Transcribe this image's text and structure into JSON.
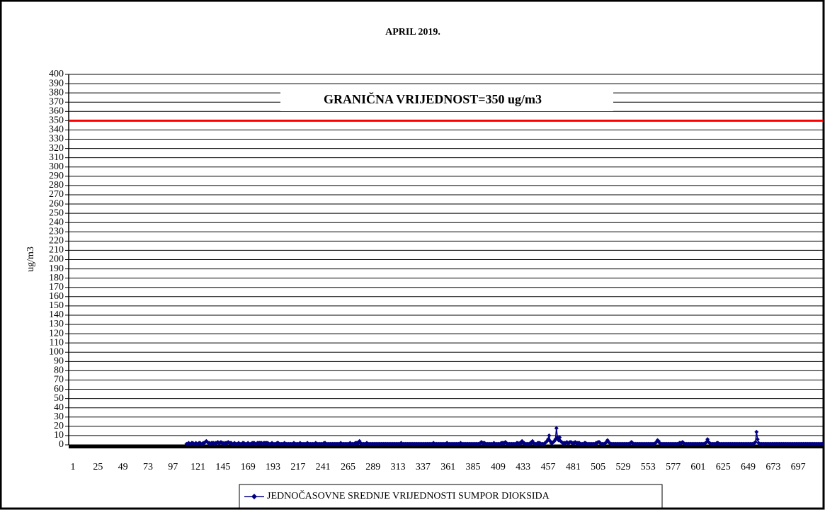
{
  "chart_data": {
    "type": "line",
    "title": "APRIL 2019.",
    "y_label": "ug/m3",
    "annotation": {
      "text": "GRANIČNA VRIJEDNOST=350 ug/m3",
      "color": "#ff0000"
    },
    "limit_line": {
      "value": 350,
      "color": "#ff0000"
    },
    "grid": true,
    "legend": "bottom",
    "xlim": [
      1,
      720
    ],
    "xticks": [
      1,
      25,
      49,
      73,
      97,
      121,
      145,
      169,
      193,
      217,
      241,
      265,
      289,
      313,
      337,
      361,
      385,
      409,
      433,
      457,
      481,
      505,
      529,
      553,
      577,
      601,
      625,
      649,
      673,
      697
    ],
    "ylim": [
      0,
      400
    ],
    "yticks": [
      0,
      10,
      20,
      30,
      40,
      50,
      60,
      70,
      80,
      90,
      100,
      110,
      120,
      130,
      140,
      150,
      160,
      170,
      180,
      190,
      200,
      210,
      220,
      230,
      240,
      250,
      260,
      270,
      280,
      290,
      300,
      310,
      320,
      330,
      340,
      350,
      360,
      370,
      380,
      390,
      400
    ],
    "x": [
      1,
      2,
      3,
      4,
      5,
      6,
      7,
      8,
      9,
      10,
      11,
      12,
      13,
      14,
      15,
      16,
      17,
      18,
      19,
      20,
      21,
      22,
      23,
      24,
      25,
      26,
      27,
      28,
      29,
      30,
      31,
      32,
      33,
      34,
      35,
      36,
      37,
      38,
      39,
      40,
      41,
      42,
      43,
      44,
      45,
      46,
      47,
      48,
      49,
      50,
      51,
      52,
      53,
      54,
      55,
      56,
      57,
      58,
      59,
      60,
      61,
      62,
      63,
      64,
      65,
      66,
      67,
      68,
      69,
      70,
      71,
      72,
      73,
      74,
      75,
      76,
      77,
      78,
      79,
      80,
      81,
      82,
      83,
      84,
      85,
      86,
      87,
      88,
      89,
      90,
      91,
      92,
      93,
      94,
      95,
      96,
      97,
      98,
      99,
      100,
      101,
      102,
      103,
      104,
      105,
      106,
      107,
      108,
      109,
      110,
      111,
      112,
      113,
      114,
      115,
      116,
      117,
      118,
      119,
      120,
      121,
      122,
      123,
      124,
      125,
      126,
      127,
      128,
      129,
      130,
      131,
      132,
      133,
      134,
      135,
      136,
      137,
      138,
      139,
      140,
      141,
      142,
      143,
      144,
      145,
      146,
      147,
      148,
      149,
      150,
      151,
      152,
      153,
      154,
      155,
      156,
      157,
      158,
      159,
      160,
      161,
      162,
      163,
      164,
      165,
      166,
      167,
      168,
      169,
      170,
      171,
      172,
      173,
      174,
      175,
      176,
      177,
      178,
      179,
      180,
      181,
      182,
      183,
      184,
      185,
      186,
      187,
      188,
      189,
      190,
      191,
      192,
      193,
      194,
      195,
      196,
      197,
      198,
      199,
      200,
      201,
      202,
      203,
      204,
      205,
      206,
      207,
      208,
      209,
      210,
      211,
      212,
      213,
      214,
      215,
      216,
      217,
      218,
      219,
      220,
      221,
      222,
      223,
      224,
      225,
      226,
      227,
      228,
      229,
      230,
      231,
      232,
      233,
      234,
      235,
      236,
      237,
      238,
      239,
      240,
      241,
      242,
      243,
      244,
      245,
      246,
      247,
      248,
      249,
      250,
      251,
      252,
      253,
      254,
      255,
      256,
      257,
      258,
      259,
      260,
      261,
      262,
      263,
      264,
      265,
      266,
      267,
      268,
      269,
      270,
      271,
      272,
      273,
      274,
      275,
      276,
      277,
      278,
      279,
      280,
      281,
      282,
      283,
      284,
      285,
      286,
      287,
      288,
      289,
      290,
      291,
      292,
      293,
      294,
      295,
      296,
      297,
      298,
      299,
      300,
      301,
      302,
      303,
      304,
      305,
      306,
      307,
      308,
      309,
      310,
      311,
      312,
      313,
      314,
      315,
      316,
      317,
      318,
      319,
      320,
      321,
      322,
      323,
      324,
      325,
      326,
      327,
      328,
      329,
      330,
      331,
      332,
      333,
      334,
      335,
      336,
      337,
      338,
      339,
      340,
      341,
      342,
      343,
      344,
      345,
      346,
      347,
      348,
      349,
      350,
      351,
      352,
      353,
      354,
      355,
      356,
      357,
      358,
      359,
      360,
      361,
      362,
      363,
      364,
      365,
      366,
      367,
      368,
      369,
      370,
      371,
      372,
      373,
      374,
      375,
      376,
      377,
      378,
      379,
      380,
      381,
      382,
      383,
      384,
      385,
      386,
      387,
      388,
      389,
      390,
      391,
      392,
      393,
      394,
      395,
      396,
      397,
      398,
      399,
      400,
      401,
      402,
      403,
      404,
      405,
      406,
      407,
      408,
      409,
      410,
      411,
      412,
      413,
      414,
      415,
      416,
      417,
      418,
      419,
      420,
      421,
      422,
      423,
      424,
      425,
      426,
      427,
      428,
      429,
      430,
      431,
      432,
      433,
      434,
      435,
      436,
      437,
      438,
      439,
      440,
      441,
      442,
      443,
      444,
      445,
      446,
      447,
      448,
      449,
      450,
      451,
      452,
      453,
      454,
      455,
      456,
      457,
      458,
      459,
      460,
      461,
      462,
      463,
      464,
      465,
      466,
      467,
      468,
      469,
      470,
      471,
      472,
      473,
      474,
      475,
      476,
      477,
      478,
      479,
      480,
      481,
      482,
      483,
      484,
      485,
      486,
      487,
      488,
      489,
      490,
      491,
      492,
      493,
      494,
      495,
      496,
      497,
      498,
      499,
      500,
      501,
      502,
      503,
      504,
      505,
      506,
      507,
      508,
      509,
      510,
      511,
      512,
      513,
      514,
      515,
      516,
      517,
      518,
      519,
      520,
      521,
      522,
      523,
      524,
      525,
      526,
      527,
      528,
      529,
      530,
      531,
      532,
      533,
      534,
      535,
      536,
      537,
      538,
      539,
      540,
      541,
      542,
      543,
      544,
      545,
      546,
      547,
      548,
      549,
      550,
      551,
      552,
      553,
      554,
      555,
      556,
      557,
      558,
      559,
      560,
      561,
      562,
      563,
      564,
      565,
      566,
      567,
      568,
      569,
      570,
      571,
      572,
      573,
      574,
      575,
      576,
      577,
      578,
      579,
      580,
      581,
      582,
      583,
      584,
      585,
      586,
      587,
      588,
      589,
      590,
      591,
      592,
      593,
      594,
      595,
      596,
      597,
      598,
      599,
      600,
      601,
      602,
      603,
      604,
      605,
      606,
      607,
      608,
      609,
      610,
      611,
      612,
      613,
      614,
      615,
      616,
      617,
      618,
      619,
      620,
      621,
      622,
      623,
      624,
      625,
      626,
      627,
      628,
      629,
      630,
      631,
      632,
      633,
      634,
      635,
      636,
      637,
      638,
      639,
      640,
      641,
      642,
      643,
      644,
      645,
      646,
      647,
      648,
      649,
      650,
      651,
      652,
      653,
      654,
      655,
      656,
      657,
      658,
      659,
      660,
      661,
      662,
      663,
      664,
      665,
      666,
      667,
      668,
      669,
      670,
      671,
      672,
      673,
      674,
      675,
      676,
      677,
      678,
      679,
      680,
      681,
      682,
      683,
      684,
      685,
      686,
      687,
      688,
      689,
      690,
      691,
      692,
      693,
      694,
      695,
      696,
      697,
      698,
      699,
      700,
      701,
      702,
      703,
      704,
      705,
      706,
      707,
      708,
      709,
      710,
      711,
      712,
      713,
      714,
      715,
      716,
      717,
      718,
      719,
      720
    ],
    "series": [
      {
        "name": "JEDNOČASOVNE SREDNJE VRIJEDNOSTI SUMPOR DIOKSIDA",
        "color": "#000080",
        "values": [
          null,
          null,
          null,
          null,
          null,
          null,
          null,
          null,
          null,
          null,
          null,
          null,
          null,
          null,
          null,
          null,
          null,
          null,
          null,
          null,
          null,
          null,
          null,
          null,
          null,
          null,
          null,
          null,
          null,
          null,
          null,
          null,
          null,
          null,
          null,
          null,
          null,
          null,
          null,
          null,
          null,
          null,
          null,
          null,
          null,
          null,
          null,
          null,
          null,
          null,
          null,
          null,
          null,
          null,
          null,
          null,
          null,
          null,
          null,
          null,
          null,
          null,
          null,
          null,
          null,
          null,
          null,
          null,
          null,
          null,
          null,
          null,
          null,
          null,
          null,
          null,
          null,
          null,
          null,
          null,
          null,
          null,
          null,
          null,
          null,
          null,
          null,
          null,
          null,
          null,
          null,
          null,
          null,
          null,
          null,
          null,
          null,
          null,
          null,
          null,
          null,
          null,
          null,
          null,
          null,
          null,
          null,
          null,
          null,
          1,
          1,
          2,
          1,
          1,
          2,
          2,
          1,
          1,
          2,
          1,
          1,
          2,
          2,
          1,
          1,
          2,
          2,
          3,
          4,
          3,
          2,
          2,
          1,
          2,
          2,
          2,
          1,
          2,
          2,
          3,
          2,
          2,
          3,
          2,
          2,
          1,
          2,
          2,
          2,
          3,
          2,
          2,
          2,
          1,
          1,
          2,
          1,
          1,
          1,
          2,
          1,
          1,
          1,
          2,
          2,
          1,
          1,
          1,
          2,
          1,
          1,
          1,
          2,
          2,
          2,
          1,
          1,
          2,
          2,
          2,
          2,
          2,
          1,
          2,
          2,
          2,
          2,
          2,
          1,
          1,
          1,
          2,
          1,
          1,
          1,
          1,
          2,
          2,
          1,
          1,
          1,
          1,
          1,
          2,
          1,
          1,
          1,
          1,
          1,
          1,
          1,
          1,
          2,
          1,
          1,
          1,
          1,
          1,
          2,
          1,
          1,
          1,
          1,
          1,
          1,
          2,
          1,
          1,
          1,
          1,
          1,
          1,
          1,
          2,
          1,
          1,
          1,
          1,
          1,
          1,
          1,
          2,
          2,
          1,
          1,
          1,
          1,
          1,
          1,
          1,
          1,
          1,
          1,
          1,
          1,
          1,
          1,
          2,
          1,
          1,
          1,
          1,
          1,
          1,
          1,
          1,
          2,
          1,
          1,
          1,
          1,
          2,
          2,
          2,
          2,
          4,
          2,
          1,
          1,
          1,
          1,
          1,
          2,
          1,
          1,
          1,
          1,
          1,
          1,
          1,
          1,
          1,
          1,
          1,
          1,
          1,
          1,
          1,
          1,
          1,
          1,
          1,
          1,
          1,
          1,
          1,
          1,
          1,
          1,
          1,
          1,
          1,
          1,
          1,
          1,
          2,
          1,
          1,
          1,
          1,
          1,
          1,
          1,
          1,
          1,
          1,
          1,
          1,
          1,
          1,
          1,
          1,
          1,
          1,
          1,
          1,
          1,
          1,
          1,
          1,
          1,
          1,
          1,
          1,
          1,
          1,
          2,
          1,
          1,
          1,
          1,
          1,
          1,
          1,
          1,
          1,
          1,
          1,
          1,
          2,
          1,
          1,
          1,
          1,
          1,
          1,
          1,
          1,
          1,
          1,
          1,
          1,
          2,
          1,
          1,
          1,
          1,
          1,
          1,
          1,
          1,
          1,
          1,
          1,
          1,
          1,
          1,
          1,
          1,
          1,
          1,
          2,
          3,
          2,
          2,
          2,
          1,
          1,
          1,
          1,
          1,
          1,
          1,
          1,
          2,
          1,
          1,
          1,
          1,
          1,
          1,
          2,
          2,
          2,
          2,
          3,
          2,
          1,
          1,
          1,
          1,
          1,
          1,
          1,
          1,
          1,
          2,
          2,
          1,
          2,
          2,
          4,
          2,
          2,
          1,
          1,
          1,
          1,
          1,
          2,
          2,
          4,
          2,
          1,
          1,
          1,
          2,
          2,
          2,
          1,
          1,
          1,
          1,
          2,
          3,
          4,
          6,
          10,
          4,
          2,
          2,
          3,
          4,
          6,
          18,
          8,
          5,
          8,
          4,
          3,
          2,
          2,
          2,
          2,
          3,
          2,
          2,
          3,
          3,
          2,
          2,
          2,
          3,
          2,
          2,
          2,
          2,
          1,
          1,
          1,
          1,
          2,
          2,
          1,
          1,
          1,
          1,
          1,
          1,
          1,
          1,
          1,
          2,
          2,
          3,
          3,
          2,
          1,
          1,
          1,
          1,
          2,
          3,
          5,
          3,
          2,
          1,
          1,
          1,
          1,
          1,
          1,
          1,
          1,
          1,
          1,
          1,
          1,
          1,
          1,
          1,
          1,
          1,
          1,
          1,
          2,
          3,
          2,
          1,
          1,
          1,
          1,
          1,
          1,
          1,
          1,
          1,
          1,
          1,
          1,
          1,
          1,
          1,
          1,
          1,
          1,
          1,
          1,
          1,
          2,
          3,
          5,
          4,
          2,
          1,
          1,
          1,
          1,
          1,
          1,
          1,
          1,
          1,
          1,
          1,
          1,
          1,
          1,
          1,
          1,
          1,
          1,
          2,
          2,
          2,
          3,
          2,
          1,
          1,
          1,
          1,
          1,
          1,
          1,
          1,
          1,
          1,
          1,
          1,
          1,
          1,
          1,
          1,
          1,
          1,
          1,
          1,
          2,
          3,
          6,
          3,
          2,
          1,
          1,
          1,
          1,
          1,
          1,
          2,
          2,
          1,
          1,
          1,
          1,
          1,
          1,
          1,
          1,
          1,
          1,
          1,
          1,
          1,
          1,
          1,
          1,
          1,
          1,
          1,
          1,
          1,
          1,
          1,
          1,
          1,
          1,
          1,
          1,
          1,
          1,
          1,
          1,
          1,
          1,
          2,
          3,
          14,
          6,
          2,
          1,
          1,
          1,
          1,
          1,
          1,
          1,
          1,
          1,
          1,
          1,
          1,
          1,
          1,
          1,
          1,
          1,
          1,
          1,
          1,
          1,
          1,
          1,
          1,
          1,
          1,
          1,
          1,
          1,
          1,
          1,
          1,
          1,
          1,
          1,
          1,
          1,
          1,
          1,
          1,
          1,
          1,
          1,
          1,
          1,
          1,
          1,
          1,
          1,
          1,
          1,
          1,
          1,
          1,
          1,
          1,
          1,
          1,
          1,
          1,
          1
        ]
      }
    ]
  }
}
